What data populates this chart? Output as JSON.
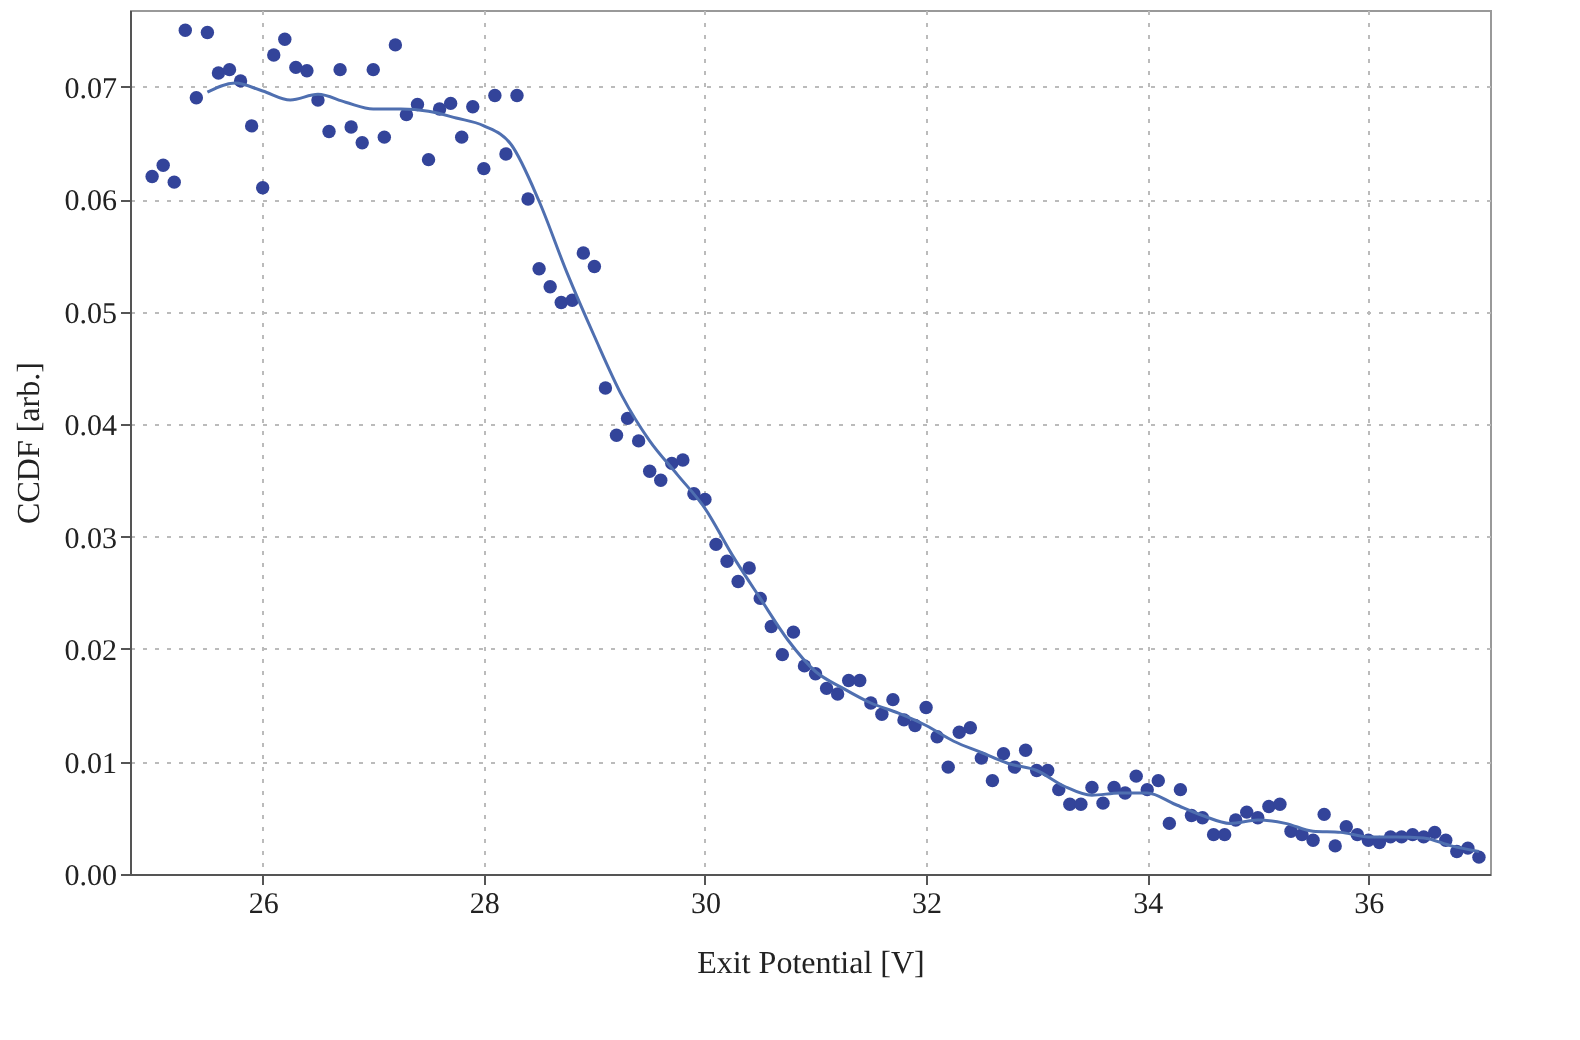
{
  "chart_data": {
    "type": "scatter",
    "xlabel": "Exit Potential [V]",
    "ylabel": "CCDF [arb.]",
    "xlim": [
      24.8,
      37.1
    ],
    "xticks": [
      26,
      28,
      30,
      32,
      34,
      36
    ],
    "ylim": [
      0,
      0.0768
    ],
    "yticks": [
      {
        "value": 0,
        "label": "0.00"
      },
      {
        "value": 0.01,
        "label": "0.01"
      },
      {
        "value": 0.02,
        "label": "0.02"
      },
      {
        "value": 0.03,
        "label": "0.03"
      },
      {
        "value": 0.04,
        "label": "0.04"
      },
      {
        "value": 0.05,
        "label": "0.05"
      },
      {
        "value": 0.06,
        "label": "0.06"
      },
      {
        "value": 0.07,
        "label": "0.07"
      }
    ],
    "grid": true,
    "marker": "circle",
    "series": [
      {
        "color": "#33449a",
        "x": [
          25.0,
          25.1,
          25.2,
          25.3,
          25.4,
          25.5,
          25.6,
          25.7,
          25.8,
          25.9,
          26.0,
          26.1,
          26.2,
          26.3,
          26.4,
          26.5,
          26.6,
          26.7,
          26.8,
          26.9,
          27.0,
          27.1,
          27.2,
          27.3,
          27.4,
          27.5,
          27.6,
          27.7,
          27.8,
          27.9,
          28.0,
          28.1,
          28.2,
          28.3,
          28.4,
          28.5,
          28.6,
          28.7,
          28.8,
          28.9,
          29.0,
          29.1,
          29.2,
          29.3,
          29.4,
          29.5,
          29.6,
          29.7,
          29.8,
          29.9,
          30.0,
          30.1,
          30.2,
          30.3,
          30.4,
          30.5,
          30.6,
          30.7,
          30.8,
          30.9,
          31.0,
          31.1,
          31.2,
          31.3,
          31.4,
          31.5,
          31.6,
          31.7,
          31.8,
          31.9,
          32.0,
          32.1,
          32.2,
          32.3,
          32.4,
          32.5,
          32.6,
          32.7,
          32.8,
          32.9,
          33.0,
          33.1,
          33.2,
          33.3,
          33.4,
          33.5,
          33.6,
          33.7,
          33.8,
          33.9,
          34.0,
          34.1,
          34.2,
          34.3,
          34.4,
          34.5,
          34.6,
          34.7,
          34.8,
          34.9,
          35.0,
          35.1,
          35.2,
          35.3,
          35.4,
          35.5,
          35.6,
          35.7,
          35.8,
          35.9,
          36.0,
          36.1,
          36.2,
          36.3,
          36.4,
          36.5,
          36.6,
          36.7,
          36.8,
          36.9,
          37.0
        ],
        "values": [
          0.062,
          0.063,
          0.0615,
          0.075,
          0.069,
          0.0748,
          0.0712,
          0.0715,
          0.0705,
          0.0665,
          0.061,
          0.0728,
          0.0742,
          0.0717,
          0.0714,
          0.0688,
          0.066,
          0.0715,
          0.0664,
          0.065,
          0.0715,
          0.0655,
          0.0737,
          0.0675,
          0.0684,
          0.0635,
          0.068,
          0.0685,
          0.0655,
          0.0682,
          0.0627,
          0.0692,
          0.064,
          0.0692,
          0.06,
          0.0538,
          0.0522,
          0.0508,
          0.051,
          0.0552,
          0.054,
          0.0432,
          0.039,
          0.0405,
          0.0385,
          0.0358,
          0.035,
          0.0365,
          0.0368,
          0.0338,
          0.0333,
          0.0293,
          0.0278,
          0.026,
          0.0272,
          0.0245,
          0.022,
          0.0195,
          0.0215,
          0.0185,
          0.0178,
          0.0165,
          0.016,
          0.0172,
          0.0172,
          0.0152,
          0.0142,
          0.0155,
          0.0137,
          0.0132,
          0.0148,
          0.0122,
          0.0095,
          0.0126,
          0.013,
          0.0103,
          0.0083,
          0.0107,
          0.0095,
          0.011,
          0.0092,
          0.0092,
          0.0075,
          0.0062,
          0.0062,
          0.0077,
          0.0063,
          0.0077,
          0.0072,
          0.0087,
          0.0075,
          0.0083,
          0.0045,
          0.0075,
          0.0052,
          0.005,
          0.0035,
          0.0035,
          0.0048,
          0.0055,
          0.005,
          0.006,
          0.0062,
          0.0038,
          0.0035,
          0.003,
          0.0053,
          0.0025,
          0.0042,
          0.0035,
          0.003,
          0.0028,
          0.0033,
          0.0033,
          0.0035,
          0.0033,
          0.0037,
          0.003,
          0.002,
          0.0023,
          0.0015
        ]
      },
      {
        "type": "line",
        "marker": "none",
        "line_style": "solid",
        "color": "#4f6fb0",
        "x": [
          25.5,
          25.75,
          26.0,
          26.25,
          26.5,
          26.75,
          27.0,
          27.25,
          27.5,
          27.75,
          28.0,
          28.25,
          28.5,
          28.75,
          29.0,
          29.25,
          29.5,
          29.75,
          30.0,
          30.25,
          30.5,
          30.75,
          31.0,
          31.25,
          31.5,
          31.75,
          32.0,
          32.25,
          32.5,
          32.75,
          33.0,
          33.25,
          33.5,
          33.75,
          34.0,
          34.25,
          34.5,
          34.75,
          35.0,
          35.25,
          35.5,
          35.75,
          36.0,
          36.25,
          36.5,
          36.75,
          37.0
        ],
        "values": [
          0.0695,
          0.0703,
          0.0696,
          0.0688,
          0.0693,
          0.0686,
          0.068,
          0.068,
          0.0678,
          0.0672,
          0.0665,
          0.0648,
          0.0598,
          0.0535,
          0.0478,
          0.0425,
          0.0385,
          0.0355,
          0.0325,
          0.0283,
          0.0245,
          0.0208,
          0.018,
          0.0165,
          0.0152,
          0.0143,
          0.0132,
          0.0118,
          0.0108,
          0.0098,
          0.0092,
          0.0078,
          0.007,
          0.0072,
          0.0072,
          0.0062,
          0.0052,
          0.0045,
          0.0048,
          0.0045,
          0.0038,
          0.0037,
          0.0033,
          0.0033,
          0.0032,
          0.0025,
          0.002
        ]
      }
    ]
  }
}
